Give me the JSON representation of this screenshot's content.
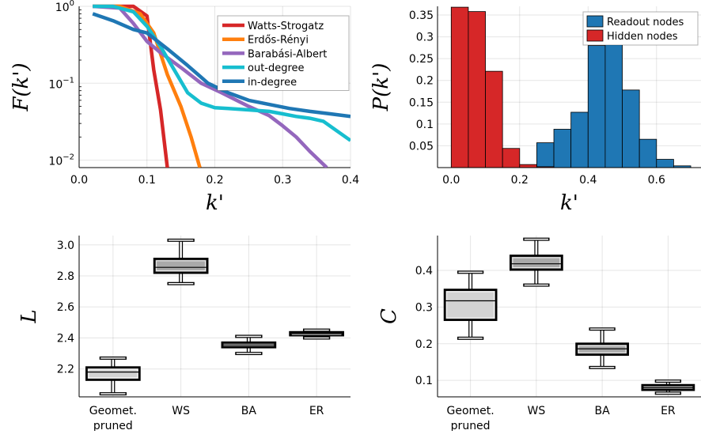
{
  "chart_data": [
    {
      "type": "line",
      "xlabel": "k'",
      "ylabel": "F(k')",
      "xlim": [
        0.0,
        0.4
      ],
      "ylim": [
        0.008,
        1.0
      ],
      "yscale": "log",
      "xticks": [
        0.0,
        0.1,
        0.2,
        0.3,
        0.4
      ],
      "xtick_labels": [
        "0.0",
        "0.1",
        "0.2",
        "0.3",
        "0.4"
      ],
      "yticks": [
        0.01,
        0.1,
        1
      ],
      "ytick_labels": [
        "10^{-2}",
        "10^{-1}",
        "10^{0}"
      ],
      "grid": true,
      "legend_position": "top-right",
      "series": [
        {
          "name": "Watts-Strogatz",
          "color": "#d62728",
          "x": [
            0.02,
            0.08,
            0.1,
            0.11,
            0.12,
            0.13
          ],
          "y": [
            1.0,
            1.0,
            0.75,
            0.15,
            0.045,
            0.008
          ]
        },
        {
          "name": "Erdős-Rényi",
          "color": "#ff7f0e",
          "x": [
            0.02,
            0.06,
            0.09,
            0.11,
            0.13,
            0.15,
            0.165,
            0.178
          ],
          "y": [
            1.0,
            1.0,
            0.8,
            0.45,
            0.13,
            0.05,
            0.02,
            0.008
          ]
        },
        {
          "name": "Barabási-Albert",
          "color": "#9467bd",
          "x": [
            0.02,
            0.06,
            0.08,
            0.1,
            0.12,
            0.15,
            0.18,
            0.21,
            0.25,
            0.28,
            0.3,
            0.32,
            0.34,
            0.365
          ],
          "y": [
            1.0,
            0.95,
            0.6,
            0.35,
            0.25,
            0.16,
            0.1,
            0.075,
            0.05,
            0.038,
            0.028,
            0.02,
            0.013,
            0.008
          ]
        },
        {
          "name": "out-degree",
          "color": "#17becf",
          "x": [
            0.02,
            0.05,
            0.08,
            0.1,
            0.12,
            0.14,
            0.16,
            0.18,
            0.2,
            0.22,
            0.25,
            0.28,
            0.3,
            0.32,
            0.34,
            0.36,
            0.38,
            0.4
          ],
          "y": [
            1.0,
            1.0,
            0.85,
            0.55,
            0.3,
            0.15,
            0.075,
            0.055,
            0.048,
            0.047,
            0.045,
            0.043,
            0.04,
            0.037,
            0.035,
            0.032,
            0.024,
            0.018
          ]
        },
        {
          "name": "in-degree",
          "color": "#1f77b4",
          "x": [
            0.02,
            0.05,
            0.08,
            0.1,
            0.13,
            0.16,
            0.19,
            0.22,
            0.25,
            0.28,
            0.31,
            0.34,
            0.37,
            0.4
          ],
          "y": [
            0.8,
            0.65,
            0.5,
            0.45,
            0.28,
            0.17,
            0.1,
            0.075,
            0.06,
            0.053,
            0.047,
            0.043,
            0.04,
            0.037
          ]
        }
      ]
    },
    {
      "type": "bar",
      "xlabel": "k'",
      "ylabel": "P(k')",
      "xlim": [
        -0.04,
        0.73
      ],
      "ylim": [
        0,
        0.37
      ],
      "xticks": [
        0.0,
        0.2,
        0.4,
        0.6
      ],
      "xtick_labels": [
        "0.0",
        "0.2",
        "0.4",
        "0.6"
      ],
      "yticks": [
        0.05,
        0.1,
        0.15,
        0.2,
        0.25,
        0.3,
        0.35
      ],
      "ytick_labels": [
        "0.05",
        "0.1",
        "0.15",
        "0.2",
        "0.25",
        "0.3",
        "0.35"
      ],
      "grid": true,
      "legend_position": "top-right",
      "bin_width": 0.05,
      "series": [
        {
          "name": "Readout nodes",
          "color": "#1f77b4",
          "bin_starts": [
            0.25,
            0.3,
            0.35,
            0.4,
            0.45,
            0.5,
            0.55,
            0.6,
            0.65
          ],
          "values": [
            0.057,
            0.088,
            0.127,
            0.28,
            0.29,
            0.178,
            0.065,
            0.019,
            0.004
          ]
        },
        {
          "name": "Hidden nodes",
          "color": "#d62728",
          "bin_starts": [
            0.0,
            0.05,
            0.1,
            0.15,
            0.2,
            0.25
          ],
          "values": [
            0.368,
            0.358,
            0.221,
            0.044,
            0.007,
            0.002
          ]
        }
      ]
    },
    {
      "type": "box",
      "ylabel": "L",
      "categories": [
        "Geomet.\npruned",
        "WS",
        "BA",
        "ER"
      ],
      "category_labels": [
        [
          "Geomet.",
          "pruned"
        ],
        [
          "WS"
        ],
        [
          "BA"
        ],
        [
          "ER"
        ]
      ],
      "ylim": [
        2.02,
        3.06
      ],
      "yticks": [
        2.2,
        2.4,
        2.6,
        2.8,
        3.0
      ],
      "ytick_labels": [
        "2.2",
        "2.4",
        "2.6",
        "2.8",
        "3.0"
      ],
      "grid": true,
      "boxes": [
        {
          "min": 2.04,
          "q1": 2.13,
          "median": 2.18,
          "q3": 2.21,
          "max": 2.27
        },
        {
          "min": 2.75,
          "q1": 2.82,
          "median": 2.855,
          "q3": 2.91,
          "max": 3.03
        },
        {
          "min": 2.3,
          "q1": 2.34,
          "median": 2.355,
          "q3": 2.37,
          "max": 2.41
        },
        {
          "min": 2.4,
          "q1": 2.417,
          "median": 2.427,
          "q3": 2.437,
          "max": 2.45
        }
      ]
    },
    {
      "type": "box",
      "ylabel": "C",
      "categories": [
        "Geomet.\npruned",
        "WS",
        "BA",
        "ER"
      ],
      "category_labels": [
        [
          "Geomet.",
          "pruned"
        ],
        [
          "WS"
        ],
        [
          "BA"
        ],
        [
          "ER"
        ]
      ],
      "ylim": [
        0.055,
        0.495
      ],
      "yticks": [
        0.1,
        0.2,
        0.3,
        0.4
      ],
      "ytick_labels": [
        "0.1",
        "0.2",
        "0.3",
        "0.4"
      ],
      "grid": true,
      "boxes": [
        {
          "min": 0.215,
          "q1": 0.265,
          "median": 0.317,
          "q3": 0.347,
          "max": 0.395
        },
        {
          "min": 0.36,
          "q1": 0.402,
          "median": 0.418,
          "q3": 0.44,
          "max": 0.485
        },
        {
          "min": 0.135,
          "q1": 0.17,
          "median": 0.186,
          "q3": 0.2,
          "max": 0.24
        },
        {
          "min": 0.065,
          "q1": 0.074,
          "median": 0.08,
          "q3": 0.087,
          "max": 0.098
        }
      ]
    }
  ]
}
